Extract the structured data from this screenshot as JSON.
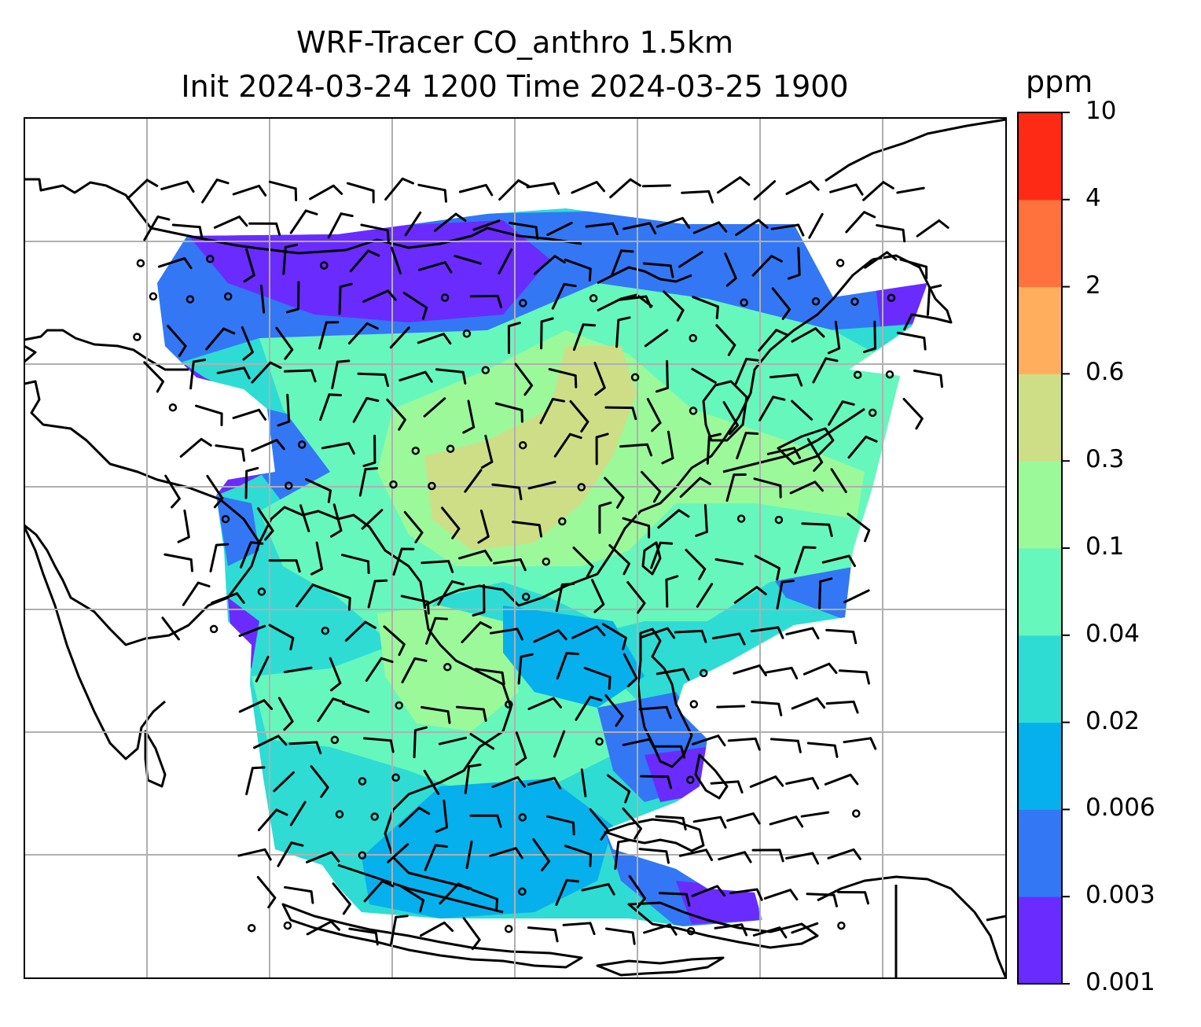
{
  "title": {
    "line1": "WRF-Tracer CO_anthro 1.5km",
    "line2": "Init 2024-03-24 1200 Time 2024-03-25 1900"
  },
  "colorbar": {
    "units": "ppm",
    "ticks": [
      "0.001",
      "0.003",
      "0.006",
      "0.02",
      "0.04",
      "0.1",
      "0.3",
      "0.6",
      "2",
      "4",
      "10"
    ],
    "colors": [
      "#6a2bff",
      "#3377f5",
      "#06b0ec",
      "#2edcd4",
      "#66f7bc",
      "#9bf99a",
      "#cede87",
      "#ffae5e",
      "#ff713d",
      "#ff2a15"
    ]
  },
  "map": {
    "gridlines": true,
    "layers": [
      "coastlines",
      "CO_anthro concentration",
      "wind barbs"
    ]
  }
}
